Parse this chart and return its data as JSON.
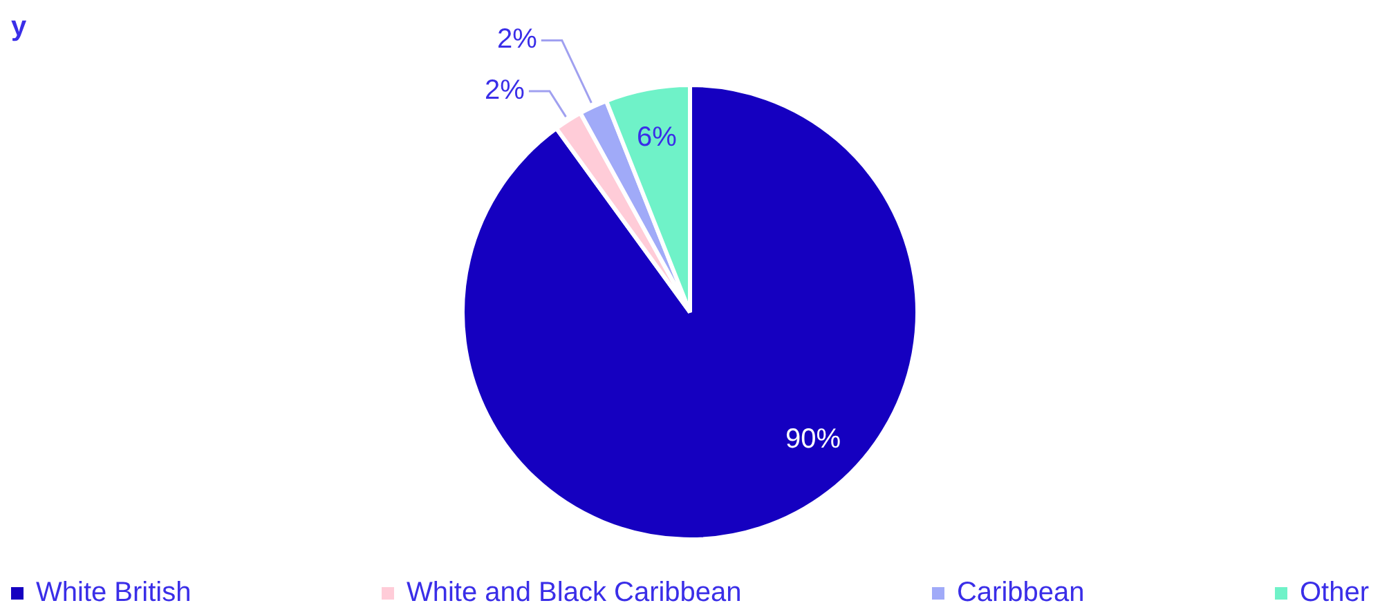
{
  "chart_data": {
    "type": "pie",
    "title": "y",
    "categories": [
      "White British",
      "White and Black Caribbean",
      "Caribbean",
      "Other"
    ],
    "values": [
      90,
      2,
      2,
      6
    ],
    "colors": [
      "#1500c0",
      "#ffccd8",
      "#a0aaf8",
      "#6ff2c8"
    ],
    "value_labels": [
      "90%",
      "2%",
      "2%",
      "6%"
    ],
    "legend": "bottom"
  }
}
